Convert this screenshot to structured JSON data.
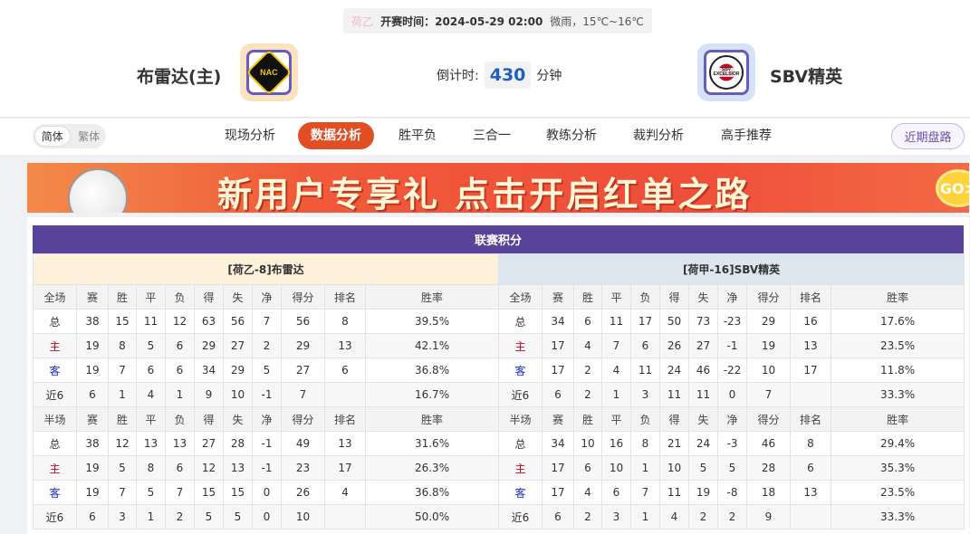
{
  "header": {
    "league": "荷乙",
    "kickoff_label": "开赛时间：",
    "kickoff": "2024-05-29 02:00",
    "weather": "微雨，15℃~16℃",
    "home": "布雷达(主)",
    "away": "SBV精英",
    "countdown_label": "倒计时:",
    "countdown": "430",
    "countdown_unit": "分钟",
    "home_logo_text": "NAC",
    "away_logo_text": "SBV EXCELSIOR"
  },
  "nav": {
    "lang": [
      "简体",
      "繁体"
    ],
    "tabs": [
      "现场分析",
      "数据分析",
      "胜平负",
      "三合一",
      "教练分析",
      "裁判分析",
      "高手推荐"
    ],
    "active": 1,
    "recent": "近期盘路"
  },
  "banner": {
    "text": "新用户专享礼 点击开启红单之路",
    "go": "GO>"
  },
  "standings": {
    "title": "联赛积分",
    "columns": [
      "赛",
      "胜",
      "平",
      "负",
      "得",
      "失",
      "净",
      "得分",
      "排名",
      "胜率"
    ],
    "teams": [
      {
        "name": "[荷乙-8]布雷达",
        "sections": [
          {
            "label": "全场",
            "rows": [
              [
                "总",
                "38",
                "15",
                "11",
                "12",
                "63",
                "56",
                "7",
                "56",
                "8",
                "39.5%"
              ],
              [
                "主",
                "19",
                "8",
                "5",
                "6",
                "29",
                "27",
                "2",
                "29",
                "13",
                "42.1%"
              ],
              [
                "客",
                "19",
                "7",
                "6",
                "6",
                "34",
                "29",
                "5",
                "27",
                "6",
                "36.8%"
              ],
              [
                "近6",
                "6",
                "1",
                "4",
                "1",
                "9",
                "10",
                "-1",
                "7",
                "",
                "16.7%"
              ]
            ]
          },
          {
            "label": "半场",
            "rows": [
              [
                "总",
                "38",
                "12",
                "13",
                "13",
                "27",
                "28",
                "-1",
                "49",
                "13",
                "31.6%"
              ],
              [
                "主",
                "19",
                "5",
                "8",
                "6",
                "12",
                "13",
                "-1",
                "23",
                "17",
                "26.3%"
              ],
              [
                "客",
                "19",
                "7",
                "5",
                "7",
                "15",
                "15",
                "0",
                "26",
                "4",
                "36.8%"
              ],
              [
                "近6",
                "6",
                "3",
                "1",
                "2",
                "5",
                "5",
                "0",
                "10",
                "",
                "50.0%"
              ]
            ]
          }
        ]
      },
      {
        "name": "[荷甲-16]SBV精英",
        "sections": [
          {
            "label": "全场",
            "rows": [
              [
                "总",
                "34",
                "6",
                "11",
                "17",
                "50",
                "73",
                "-23",
                "29",
                "16",
                "17.6%"
              ],
              [
                "主",
                "17",
                "4",
                "7",
                "6",
                "26",
                "27",
                "-1",
                "19",
                "13",
                "23.5%"
              ],
              [
                "客",
                "17",
                "2",
                "4",
                "11",
                "24",
                "46",
                "-22",
                "10",
                "17",
                "11.8%"
              ],
              [
                "近6",
                "6",
                "2",
                "1",
                "3",
                "11",
                "11",
                "0",
                "7",
                "",
                "33.3%"
              ]
            ]
          },
          {
            "label": "半场",
            "rows": [
              [
                "总",
                "34",
                "10",
                "16",
                "8",
                "21",
                "24",
                "-3",
                "46",
                "8",
                "29.4%"
              ],
              [
                "主",
                "17",
                "6",
                "10",
                "1",
                "10",
                "5",
                "5",
                "28",
                "6",
                "35.3%"
              ],
              [
                "客",
                "17",
                "4",
                "6",
                "7",
                "11",
                "19",
                "-8",
                "18",
                "13",
                "23.5%"
              ],
              [
                "近6",
                "6",
                "2",
                "3",
                "1",
                "4",
                "2",
                "2",
                "9",
                "",
                "33.3%"
              ]
            ]
          }
        ]
      }
    ]
  },
  "colors": {
    "accent": "#e24e24",
    "title_bar": "#574399",
    "home_header": "#fdf1dc",
    "away_header": "#dde6ef"
  }
}
